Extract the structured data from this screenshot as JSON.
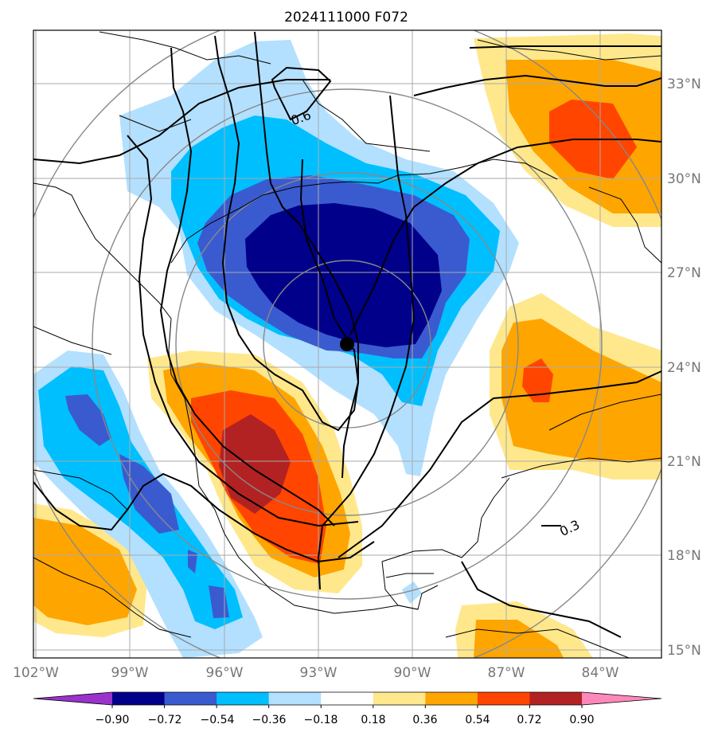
{
  "title": "2024111000 F072",
  "map": {
    "lat_labels": [
      "33°N",
      "30°N",
      "27°N",
      "24°N",
      "21°N",
      "18°N",
      "15°N"
    ],
    "lon_labels": [
      "102°W",
      "99°W",
      "96°W",
      "93°W",
      "90°W",
      "87°W",
      "84°W"
    ],
    "contour_labels": [
      "0.6",
      "0.3"
    ],
    "storm_marker": {
      "lat": 24.7,
      "lon": -91.9
    }
  },
  "colorbar": {
    "ticks": [
      "−0.90",
      "−0.72",
      "−0.54",
      "−0.36",
      "−0.18",
      "0.18",
      "0.36",
      "0.54",
      "0.72",
      "0.90"
    ],
    "colors": [
      "#9933cc",
      "#00008b",
      "#3a5bd0",
      "#00bfff",
      "#b3e0ff",
      "#ffffff",
      "#ffe88c",
      "#ffa500",
      "#ff4500",
      "#b22222",
      "#ff88bb"
    ]
  }
}
